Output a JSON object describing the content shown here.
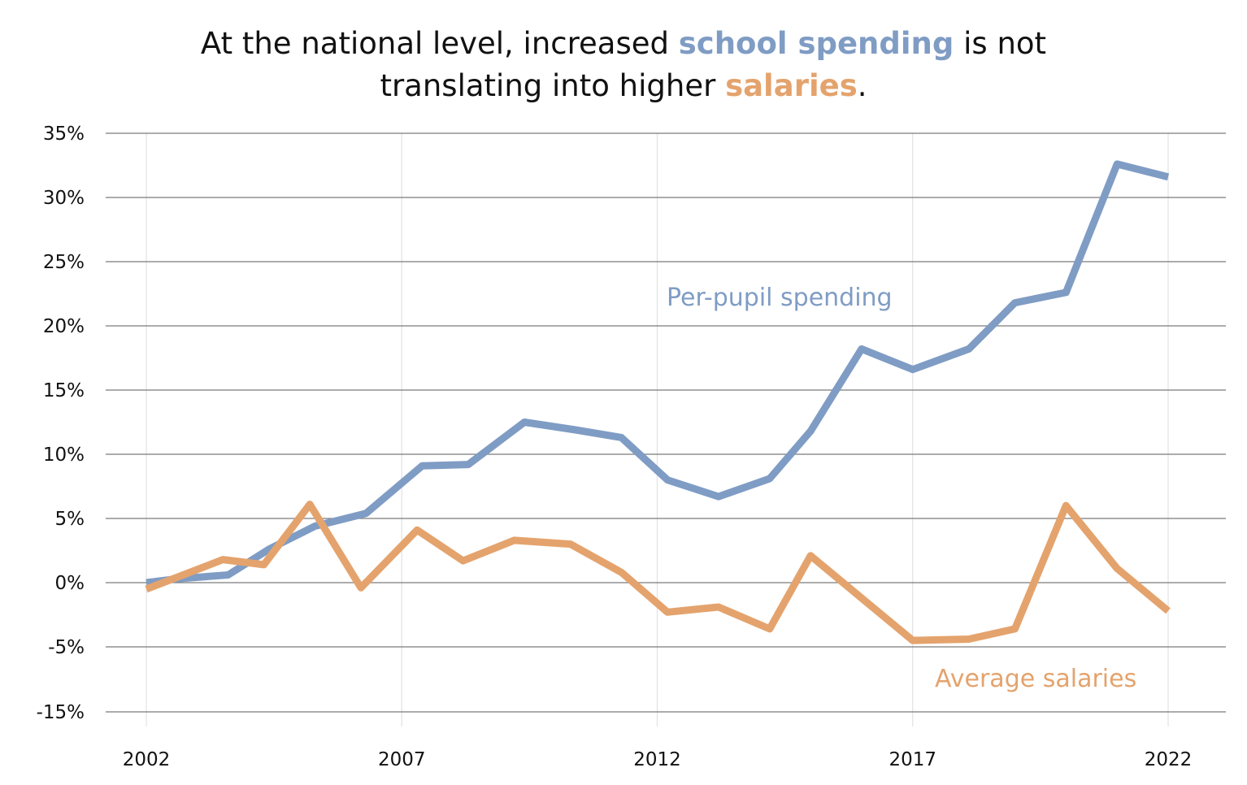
{
  "title": {
    "part1": "At the national level, increased ",
    "highlight1": "school spending",
    "part2": " is not",
    "part3": "translating into higher ",
    "highlight2": "salaries",
    "part4": "."
  },
  "colors": {
    "spending": "#7f9cc4",
    "salaries": "#e4a36d",
    "grid": "#7a7a7a",
    "vgrid": "#e2e2e2"
  },
  "chart_data": {
    "type": "line",
    "x": [
      2002,
      2003,
      2004,
      2005,
      2006,
      2007,
      2008,
      2009,
      2010,
      2011,
      2012,
      2013,
      2014,
      2015,
      2016,
      2017,
      2018,
      2019,
      2020,
      2021,
      2022
    ],
    "x_tick_labels": [
      "2002",
      "2007",
      "2012",
      "2017",
      "2022"
    ],
    "x_tick_values": [
      2002,
      2007,
      2012,
      2017,
      2022
    ],
    "y_tick_labels": [
      "35%",
      "30%",
      "25%",
      "20%",
      "15%",
      "10%",
      "5%",
      "0%",
      "-5%",
      "-15%"
    ],
    "xlim": [
      2001.25,
      2023.15
    ],
    "series": [
      {
        "name": "Per-pupil spending",
        "label": "Per-pupil spending",
        "color_key": "spending",
        "x": [
          2002,
          2002.6,
          2003.6,
          2004.4,
          2005.3,
          2006.3,
          2007.4,
          2008.3,
          2009.4,
          2010.4,
          2011.3,
          2012.2,
          2013.2,
          2014.2,
          2015.0,
          2016.0,
          2017.0,
          2018.1,
          2019.0,
          2020.0,
          2021.0,
          2022.0
        ],
        "values": [
          0,
          0.3,
          0.6,
          2.6,
          4.4,
          5.4,
          9.1,
          9.2,
          12.5,
          11.9,
          11.3,
          8.0,
          6.7,
          8.1,
          11.8,
          18.2,
          16.6,
          18.2,
          21.8,
          22.6,
          32.6,
          31.6
        ]
      },
      {
        "name": "Average salaries",
        "label": "Average salaries",
        "color_key": "salaries",
        "x": [
          2002,
          2003.5,
          2004.3,
          2005.2,
          2006.2,
          2007.3,
          2008.2,
          2009.2,
          2010.3,
          2011.3,
          2012.2,
          2013.2,
          2014.2,
          2015.0,
          2016.0,
          2017.0,
          2018.1,
          2019.0,
          2020.0,
          2021.0,
          2022.0
        ],
        "values": [
          -0.5,
          1.8,
          1.4,
          6.1,
          -0.4,
          4.1,
          1.7,
          3.3,
          3.0,
          0.8,
          -2.3,
          -1.9,
          -3.6,
          2.1,
          -1.2,
          -4.5,
          -4.4,
          -3.6,
          6.0,
          1.1,
          -2.2
        ]
      }
    ],
    "title": "At the national level, increased school spending is not translating into higher salaries.",
    "xlabel": "",
    "ylabel": "",
    "grid": true,
    "legend": "inline-labels"
  }
}
